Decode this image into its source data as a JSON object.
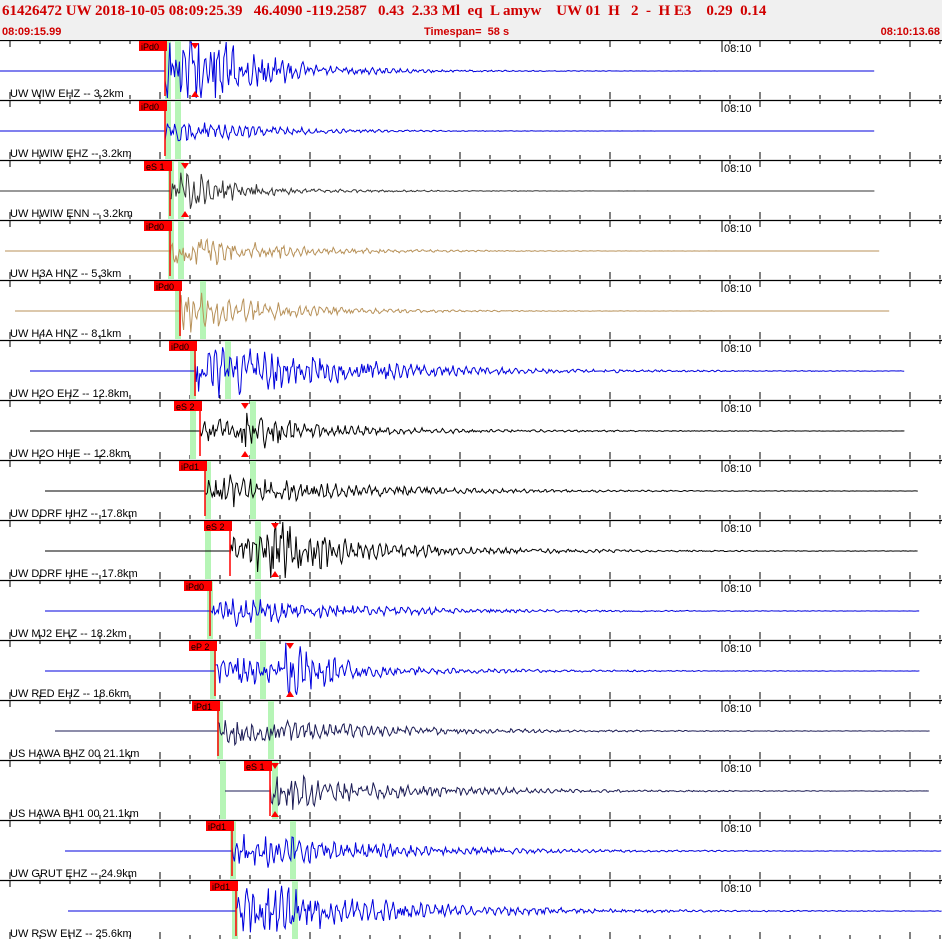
{
  "header": {
    "event_line": "61426472 UW 2018-10-05 08:09:25.39   46.4090 -119.2587   0.43  2.33 Ml  eq  L amyw    UW 01  H   2  -  H E3    0.29  0.14",
    "start_time": "08:09:15.99",
    "timespan": "Timespan=  58 s",
    "end_time": "08:10:13.68"
  },
  "time_tick_label": "08:10",
  "colors": {
    "header_text": "#d00000",
    "header_bg": "#f0f0f0",
    "pick_flag": "#ff0000",
    "pick_highlight": "#b6f5b6",
    "blue_trace": "#0000dd",
    "black_trace": "#000000",
    "tan_trace": "#b8925a",
    "navy_trace": "#1b1b55",
    "dark_trace": "#333333"
  },
  "channels": [
    {
      "label": "UW WIW EHZ -- 3.2km",
      "pick": "iPd0",
      "color": "blue"
    },
    {
      "label": "UW HWIW EHZ -- 3.2km",
      "pick": "iPd0",
      "color": "blue"
    },
    {
      "label": "UW HWIW ENN -- 3.2km",
      "pick": "eS 1",
      "color": "dark"
    },
    {
      "label": "UW H3A HNZ -- 5.3km",
      "pick": "iPd0",
      "color": "tan"
    },
    {
      "label": "UW H4A HNZ -- 8.1km",
      "pick": "iPd0",
      "color": "tan"
    },
    {
      "label": "UW H2O EHZ -- 12.8km",
      "pick": "iPd0",
      "color": "blue"
    },
    {
      "label": "UW H2O HHE -- 12.8km",
      "pick": "eS 2",
      "color": "black"
    },
    {
      "label": "UW DDRF HHZ -- 17.8km",
      "pick": "iPd1",
      "color": "black"
    },
    {
      "label": "UW DDRF HHE -- 17.8km",
      "pick": "eS 2",
      "color": "black"
    },
    {
      "label": "UW MJ2 EHZ -- 18.2km",
      "pick": "iPd0",
      "color": "blue"
    },
    {
      "label": "UW RED EHZ -- 18.6km",
      "pick": "eP 2",
      "color": "blue"
    },
    {
      "label": "US HAWA BHZ 00 21.1km",
      "pick": "iPd1",
      "color": "navy"
    },
    {
      "label": "US HAWA BH1 00 21.1km",
      "pick": "eS 1",
      "color": "navy"
    },
    {
      "label": "UW GRUT EHZ -- 24.9km",
      "pick": "iPd1",
      "color": "blue"
    },
    {
      "label": "UW RSW EHZ -- 25.6km",
      "pick": "iPd1",
      "color": "blue"
    }
  ]
}
